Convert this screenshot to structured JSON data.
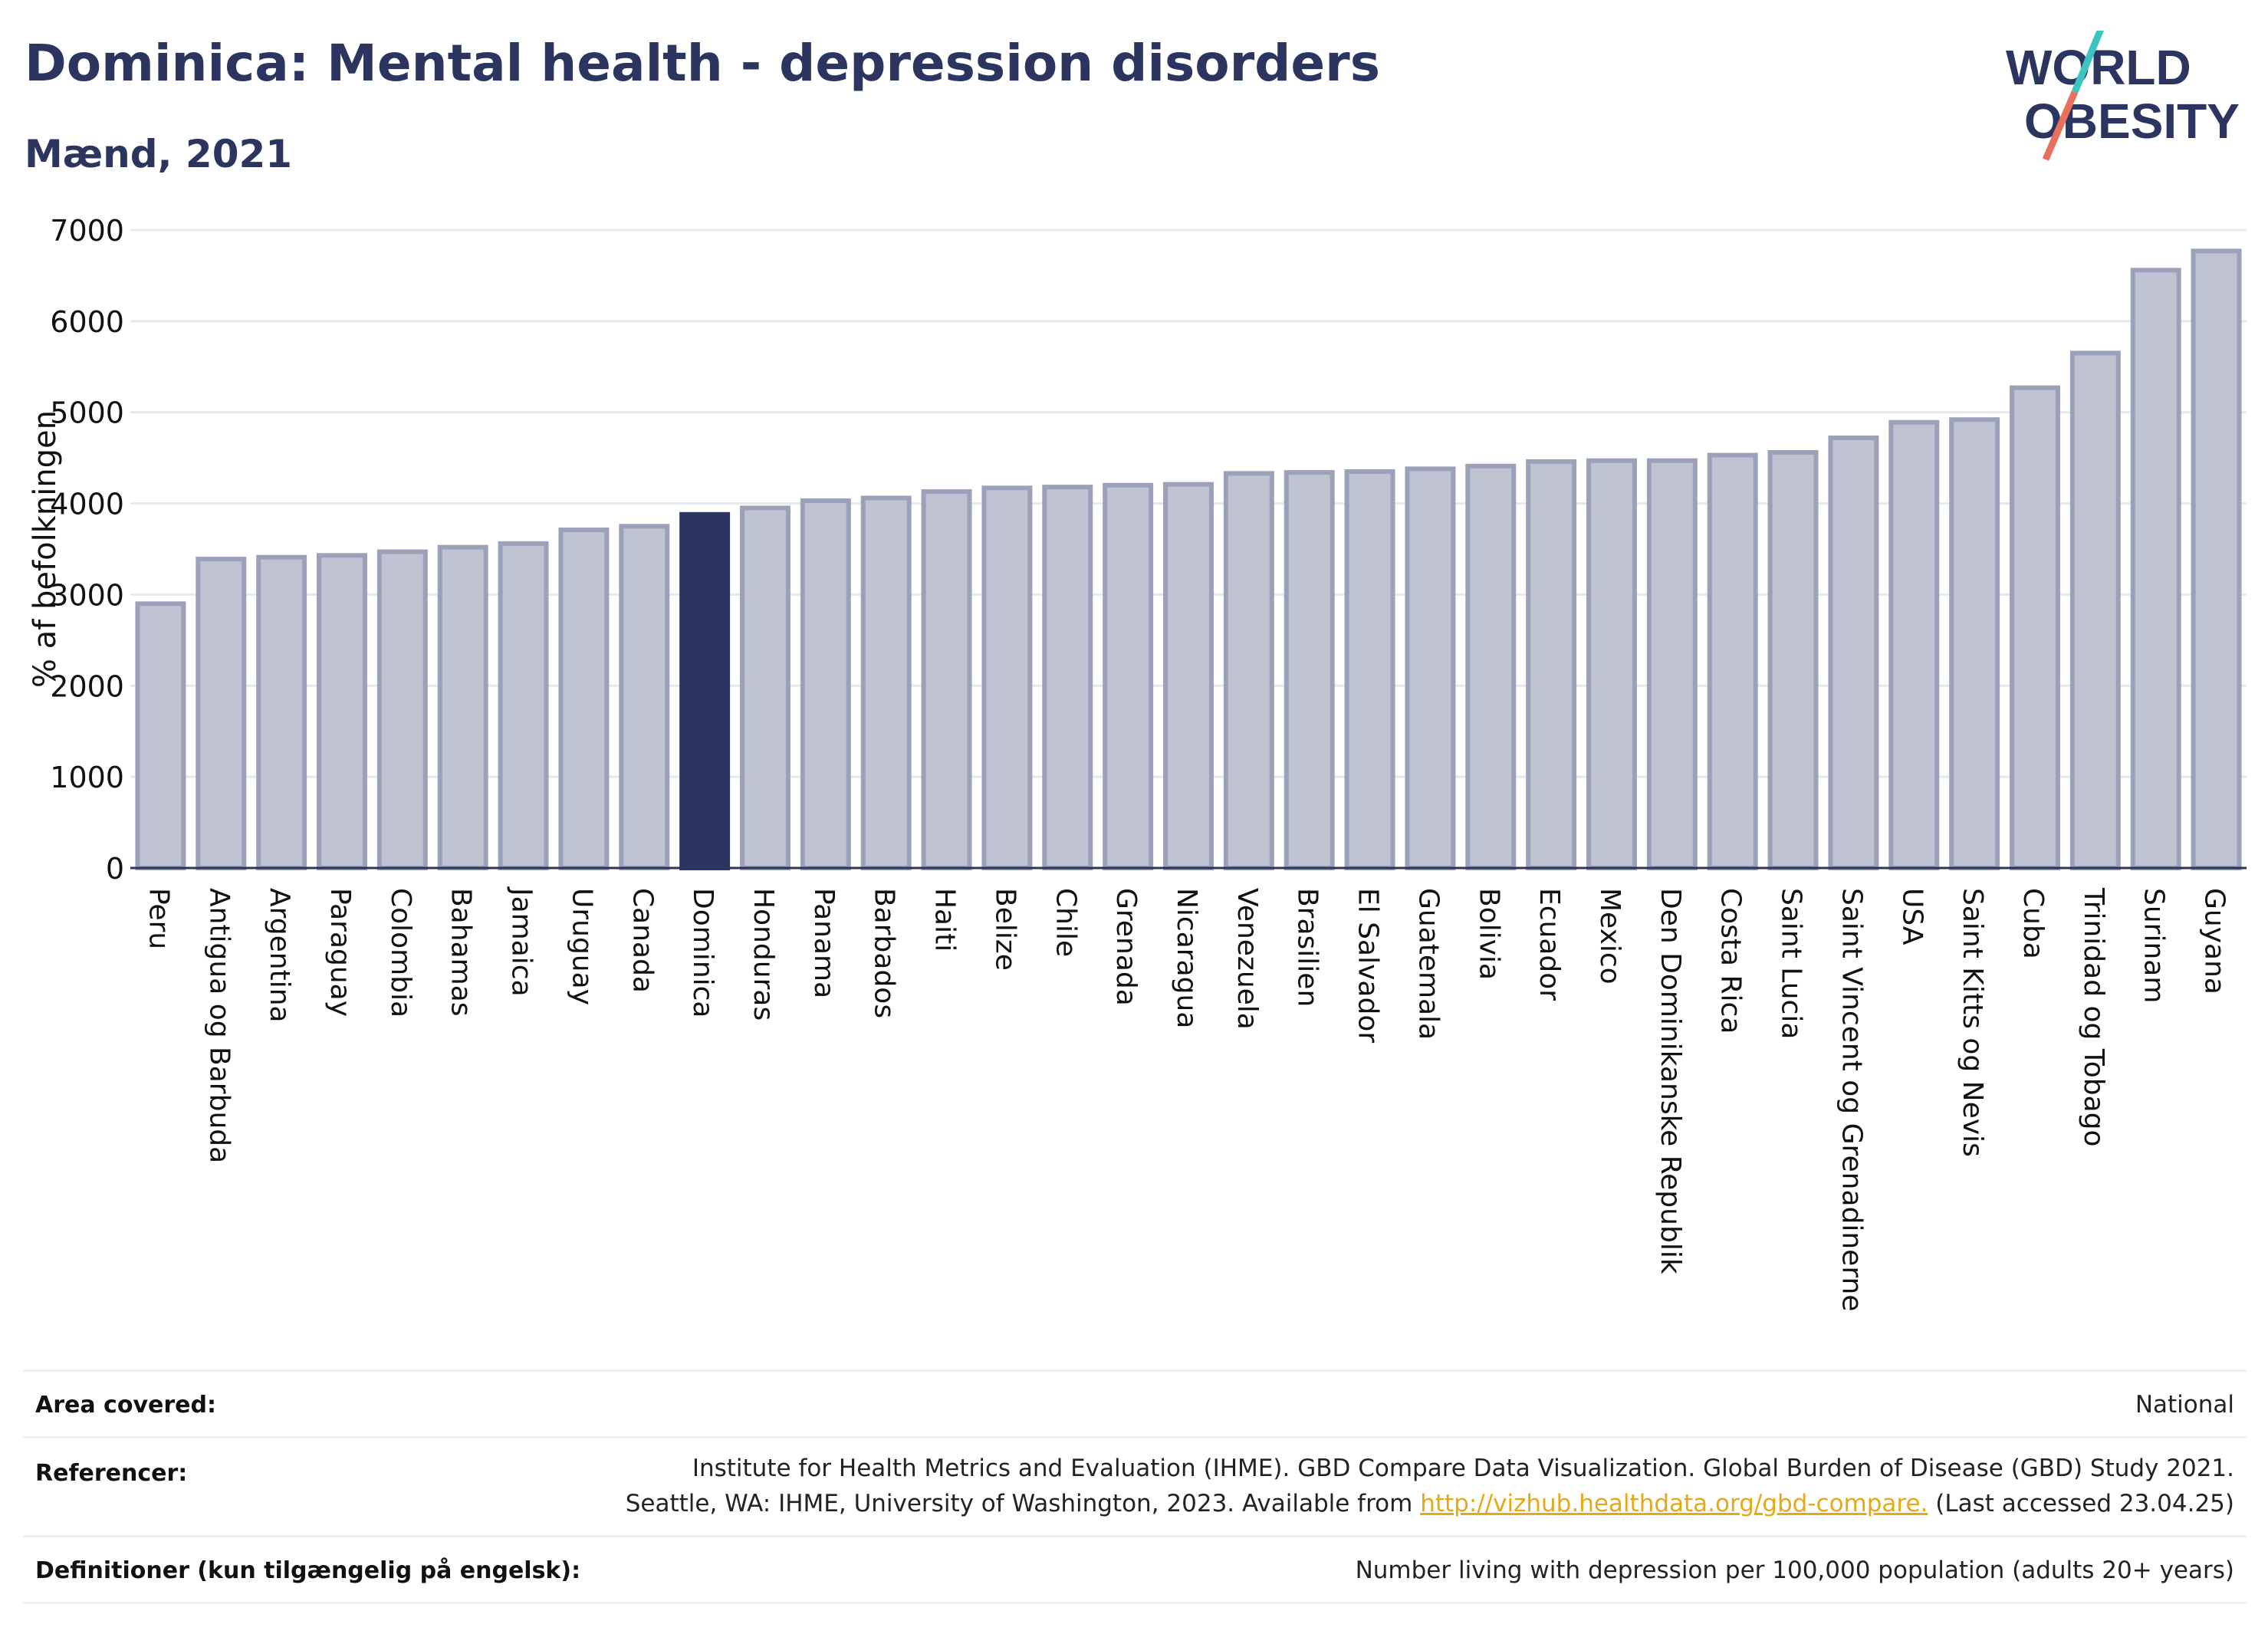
{
  "header": {
    "title": "Dominica: Mental health - depression disorders",
    "subtitle": "Mænd, 2021"
  },
  "logo": {
    "line1": "WORLD",
    "line2": "OBESITY"
  },
  "colors": {
    "bar": "#bfc3d1",
    "bar_border": "#9ba1b8",
    "highlight": "#2b3560",
    "title": "#2b3560",
    "grid": "#e6e8ef",
    "logo_teal": "#3cc5c0",
    "logo_coral": "#e8705f"
  },
  "chart_data": {
    "type": "bar",
    "ylabel": "% af befolkningen",
    "ylim": [
      0,
      7000
    ],
    "yticks": [
      0,
      1000,
      2000,
      3000,
      4000,
      5000,
      6000,
      7000
    ],
    "grid": true,
    "highlight": "Dominica",
    "categories": [
      "Peru",
      "Antigua og Barbuda",
      "Argentina",
      "Paraguay",
      "Colombia",
      "Bahamas",
      "Jamaica",
      "Uruguay",
      "Canada",
      "Dominica",
      "Honduras",
      "Panama",
      "Barbados",
      "Haiti",
      "Belize",
      "Chile",
      "Grenada",
      "Nicaragua",
      "Venezuela",
      "Brasilien",
      "El Salvador",
      "Guatemala",
      "Bolivia",
      "Ecuador",
      "Mexico",
      "Den Dominikanske Republik",
      "Costa Rica",
      "Saint Lucia",
      "Saint Vincent og Grenadinerne",
      "USA",
      "Saint Kitts og Nevis",
      "Cuba",
      "Trinidad og Tobago",
      "Surinam",
      "Guyana"
    ],
    "values": [
      2900,
      3390,
      3410,
      3430,
      3470,
      3520,
      3560,
      3710,
      3750,
      3880,
      3950,
      4030,
      4060,
      4130,
      4170,
      4180,
      4200,
      4210,
      4330,
      4340,
      4350,
      4380,
      4410,
      4460,
      4470,
      4470,
      4530,
      4560,
      4720,
      4890,
      4920,
      5270,
      5650,
      6560,
      6770
    ]
  },
  "footer": {
    "area_label": "Area covered:",
    "area_value": "National",
    "ref_label": "Referencer:",
    "ref_line1": "Institute for Health Metrics and Evaluation (IHME). GBD Compare Data Visualization. Global Burden of Disease (GBD) Study 2021.",
    "ref_line2_pre": "Seattle, WA: IHME, University of Washington, 2023. Available from",
    "ref_link": "http://vizhub.healthdata.org/gbd-compare.",
    "ref_line2_post": "(Last accessed 23.04.25)",
    "def_label": "Definitioner (kun tilgængelig på engelsk):",
    "def_value": "Number living with depression per 100,000 population (adults 20+ years)"
  }
}
